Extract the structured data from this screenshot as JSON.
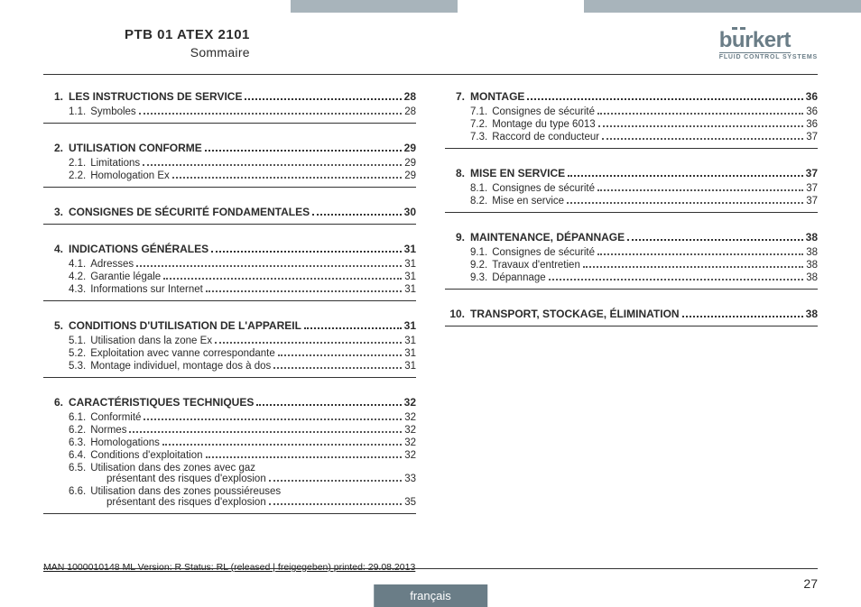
{
  "header": {
    "doc_id": "PTB 01 ATEX 2101",
    "subtitle": "Sommaire",
    "logo": {
      "name": "burkert",
      "tagline": "FLUID CONTROL SYSTEMS"
    }
  },
  "left_column": [
    {
      "num": "1.",
      "title": "LES INSTRUCTIONS DE SERVICE",
      "page": "28",
      "subs": [
        {
          "num": "1.1.",
          "title": "Symboles",
          "page": "28"
        }
      ]
    },
    {
      "num": "2.",
      "title": "UTILISATION CONFORME",
      "page": "29",
      "subs": [
        {
          "num": "2.1.",
          "title": "Limitations",
          "page": "29"
        },
        {
          "num": "2.2.",
          "title": "Homologation Ex",
          "page": "29"
        }
      ]
    },
    {
      "num": "3.",
      "title": "CONSIGNES DE SÉCURITÉ FONDAMENTALES",
      "page": "30",
      "subs": []
    },
    {
      "num": "4.",
      "title": "INDICATIONS GÉNÉRALES",
      "page": "31",
      "subs": [
        {
          "num": "4.1.",
          "title": "Adresses",
          "page": "31"
        },
        {
          "num": "4.2.",
          "title": "Garantie légale",
          "page": "31"
        },
        {
          "num": "4.3.",
          "title": "Informations sur Internet",
          "page": "31"
        }
      ]
    },
    {
      "num": "5.",
      "title": "CONDITIONS D'UTILISATION DE L'APPAREIL",
      "page": "31",
      "subs": [
        {
          "num": "5.1.",
          "title": "Utilisation dans la zone Ex",
          "page": "31"
        },
        {
          "num": "5.2.",
          "title": "Exploitation avec vanne correspondante",
          "page": "31"
        },
        {
          "num": "5.3.",
          "title": "Montage individuel, montage dos à dos",
          "page": "31"
        }
      ]
    },
    {
      "num": "6.",
      "title": "CARACTÉRISTIQUES TECHNIQUES",
      "page": "32",
      "subs": [
        {
          "num": "6.1.",
          "title": "Conformité",
          "page": "32"
        },
        {
          "num": "6.2.",
          "title": "Normes",
          "page": "32"
        },
        {
          "num": "6.3.",
          "title": "Homologations",
          "page": "32"
        },
        {
          "num": "6.4.",
          "title": "Conditions d'exploitation",
          "page": "32"
        },
        {
          "num": "6.5.",
          "title": "Utilisation dans des zones avec gaz",
          "cont": "présentant des risques d'explosion",
          "page": "33"
        },
        {
          "num": "6.6.",
          "title": "Utilisation dans des zones poussiéreuses",
          "cont": "présentant des risques d'explosion",
          "page": "35"
        }
      ]
    }
  ],
  "right_column": [
    {
      "num": "7.",
      "title": "MONTAGE",
      "page": "36",
      "subs": [
        {
          "num": "7.1.",
          "title": "Consignes de sécurité",
          "page": "36"
        },
        {
          "num": "7.2.",
          "title": "Montage du type 6013",
          "page": "36"
        },
        {
          "num": "7.3.",
          "title": "Raccord de conducteur",
          "page": "37"
        }
      ]
    },
    {
      "num": "8.",
      "title": "MISE EN SERVICE",
      "page": "37",
      "subs": [
        {
          "num": "8.1.",
          "title": "Consignes de sécurité",
          "page": "37"
        },
        {
          "num": "8.2.",
          "title": "Mise en service",
          "page": "37"
        }
      ]
    },
    {
      "num": "9.",
      "title": "MAINTENANCE, DÉPANNAGE",
      "page": "38",
      "subs": [
        {
          "num": "9.1.",
          "title": "Consignes de sécurité",
          "page": "38"
        },
        {
          "num": "9.2.",
          "title": "Travaux d'entretien",
          "page": "38"
        },
        {
          "num": "9.3.",
          "title": "Dépannage",
          "page": "38"
        }
      ]
    },
    {
      "num": "10.",
      "title": "TRANSPORT, STOCKAGE, ÉLIMINATION",
      "page": "38",
      "subs": []
    }
  ],
  "footer": {
    "meta": "MAN  1000010148  ML   Version: R Status: RL (released | freigegeben)   printed: 29.08.2013",
    "page_number": "27",
    "language": "français"
  }
}
